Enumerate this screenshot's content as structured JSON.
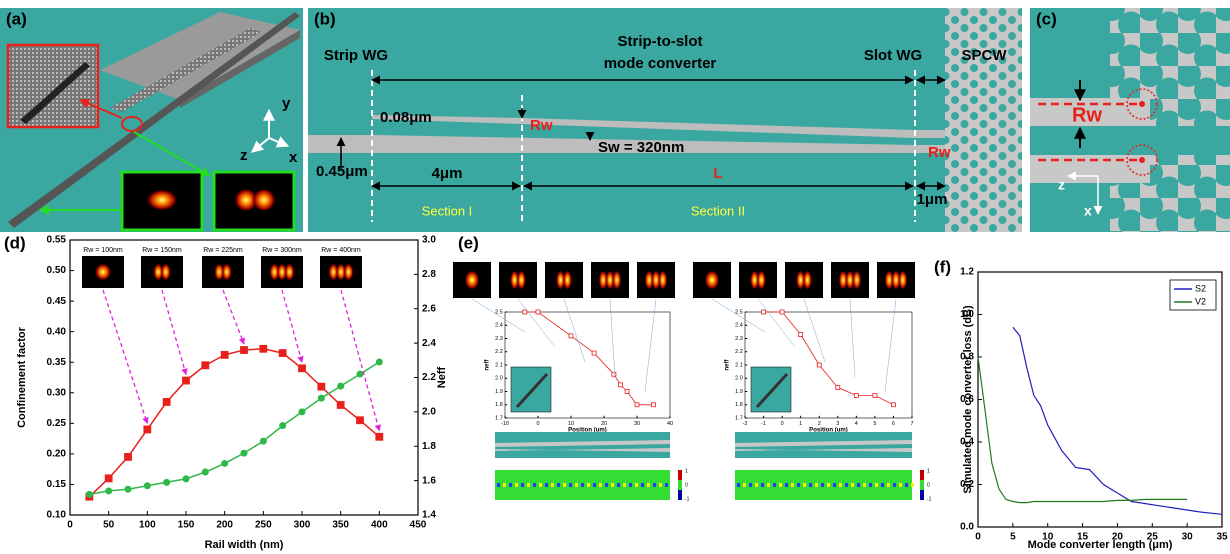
{
  "panels": {
    "a": {
      "label": "(a)",
      "axis_y": "y",
      "axis_z": "z",
      "axis_x": "x"
    },
    "b": {
      "label": "(b)",
      "strip_wg": "Strip WG",
      "converter": [
        "Strip-to-slot",
        "mode converter"
      ],
      "slot_wg": "Slot WG",
      "spcw": "SPCW",
      "gap": "0.08μm",
      "rw_taper": "Rw",
      "sw": "Sw = 320nm",
      "rw_slot": "Rw",
      "width": "0.45μm",
      "len1": "4μm",
      "len2": "L",
      "len3": "1μm",
      "section1": "Section I",
      "section2": "Section II"
    },
    "c": {
      "label": "(c)",
      "rw": "Rw",
      "axis_z": "z",
      "axis_x": "x"
    }
  },
  "chart_data": [
    {
      "type": "line",
      "panel_label": "(d)",
      "xlabel": "Rail width (nm)",
      "ylabel": "Confinement factor",
      "y2label": "Neff",
      "annotations": [
        "Rw = 100nm",
        "Rw = 150nm",
        "Rw = 225nm",
        "Rw = 300nm",
        "Rw = 400nm"
      ],
      "x": [
        25,
        50,
        75,
        100,
        125,
        150,
        175,
        200,
        225,
        250,
        275,
        300,
        325,
        350,
        375,
        400
      ],
      "xlim": [
        0,
        450
      ],
      "xticks": [
        0,
        50,
        100,
        150,
        200,
        250,
        300,
        350,
        400,
        450
      ],
      "ylim": [
        0.1,
        0.55
      ],
      "yticks": [
        {
          "value": 0.1,
          "label": "0.10"
        },
        0.15,
        {
          "value": 0.2,
          "label": "0.20"
        },
        0.25,
        {
          "value": 0.3,
          "label": "0.30"
        },
        0.35,
        {
          "value": 0.4,
          "label": "0.40"
        },
        0.45,
        {
          "value": 0.5,
          "label": "0.50"
        },
        0.55
      ],
      "y2lim": [
        1.4,
        3.0
      ],
      "y2ticks": [
        1.4,
        1.6,
        1.8,
        {
          "value": 2.0,
          "label": "2.0"
        },
        2.2,
        2.4,
        2.6,
        2.8,
        {
          "value": 3.0,
          "label": "3.0"
        }
      ],
      "series": [
        {
          "color": "#e8201c",
          "marker": "square",
          "values": [
            0.13,
            0.16,
            0.195,
            0.24,
            0.285,
            0.32,
            0.345,
            0.362,
            0.37,
            0.372,
            0.365,
            0.34,
            0.31,
            0.28,
            0.255,
            0.228
          ]
        },
        {
          "color": "#2eb84a",
          "marker": "circle",
          "axis": "y2",
          "values": [
            1.52,
            1.54,
            1.55,
            1.57,
            1.59,
            1.61,
            1.65,
            1.7,
            1.76,
            1.83,
            1.92,
            2.0,
            2.08,
            2.15,
            2.22,
            2.29
          ]
        }
      ]
    },
    {
      "type": "line",
      "panel_label": "(e)",
      "xlabel": "Position (um)",
      "ylabel": "neff",
      "x": [
        -4,
        0,
        10,
        17,
        23,
        25,
        27,
        30,
        35
      ],
      "xlim": [
        -10,
        40
      ],
      "xticks": [
        -10,
        0,
        10,
        20,
        30,
        40
      ],
      "ylim": [
        1.7,
        2.5
      ],
      "yticks": [
        1.7,
        1.8,
        1.9,
        {
          "value": 2.0,
          "label": "2.0"
        },
        2.1,
        2.2,
        2.3,
        2.4,
        2.5
      ],
      "colorbar": [
        1,
        0,
        -1
      ],
      "series": [
        {
          "color": "#e8201c",
          "marker": "open-square",
          "values": [
            2.5,
            2.5,
            2.32,
            2.19,
            2.03,
            1.95,
            1.9,
            1.8,
            1.8
          ]
        }
      ]
    },
    {
      "type": "line",
      "xlabel": "Position (um)",
      "ylabel": "neff",
      "x": [
        -1,
        0,
        1,
        2,
        3,
        4,
        5,
        6
      ],
      "xlim": [
        -2,
        7
      ],
      "xticks": [
        -2,
        -1,
        0,
        1,
        2,
        3,
        4,
        5,
        6,
        7
      ],
      "ylim": [
        1.7,
        2.5
      ],
      "yticks": [
        1.7,
        1.8,
        1.9,
        {
          "value": 2.0,
          "label": "2.0"
        },
        2.1,
        2.2,
        2.3,
        2.4,
        2.5
      ],
      "colorbar": [
        1,
        0,
        -1
      ],
      "series": [
        {
          "color": "#e8201c",
          "marker": "open-square",
          "values": [
            2.5,
            2.5,
            2.33,
            2.1,
            1.93,
            1.87,
            1.87,
            1.8
          ]
        }
      ]
    },
    {
      "type": "line",
      "panel_label": "(f)",
      "xlabel": "Mode converter length (μm)",
      "ylabel": "Simulated mode converter loss (dB)",
      "legend": "upper right",
      "x": [
        0,
        1,
        2,
        3,
        4,
        5,
        6,
        7,
        8,
        9,
        10,
        12,
        14,
        16,
        18,
        20,
        22,
        24,
        26,
        28,
        30,
        32,
        35
      ],
      "xlim": [
        0,
        35
      ],
      "xticks": [
        0,
        5,
        10,
        15,
        20,
        25,
        30,
        35
      ],
      "ylim": [
        0,
        1.2
      ],
      "yticks": [
        {
          "value": 0,
          "label": "0.0"
        },
        0.2,
        0.4,
        0.6,
        0.8,
        {
          "value": 1.0,
          "label": "1.0"
        },
        1.2
      ],
      "series": [
        {
          "name": "S2",
          "color": "#1f1fbf",
          "values": [
            null,
            null,
            null,
            null,
            null,
            0.94,
            0.9,
            0.75,
            0.62,
            0.57,
            0.48,
            0.36,
            0.28,
            0.27,
            0.2,
            0.16,
            0.12,
            0.11,
            0.1,
            0.09,
            0.08,
            0.07,
            0.06
          ]
        },
        {
          "name": "V2",
          "color": "#1e7a1e",
          "values": [
            0.8,
            0.55,
            0.3,
            0.18,
            0.13,
            0.12,
            0.115,
            0.115,
            0.12,
            0.12,
            0.12,
            0.12,
            0.12,
            0.12,
            0.12,
            0.125,
            0.125,
            0.13,
            0.13,
            0.13,
            0.13,
            null,
            null
          ]
        }
      ]
    }
  ]
}
